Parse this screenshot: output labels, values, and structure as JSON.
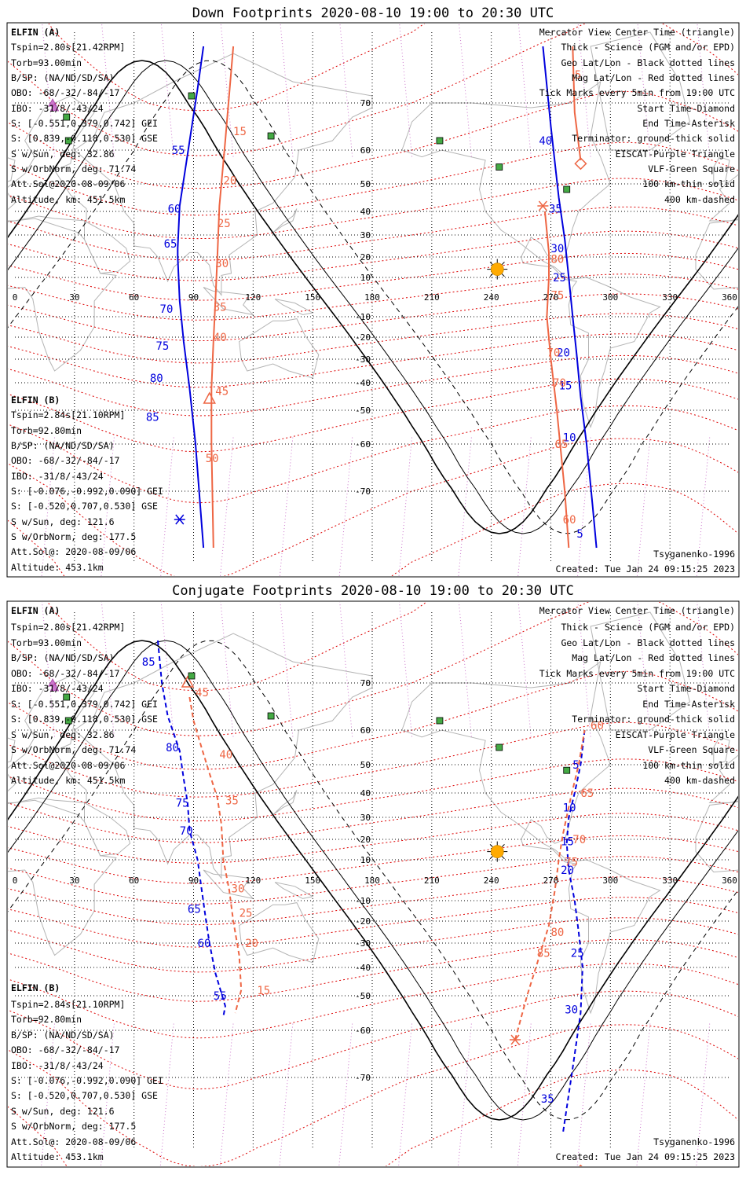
{
  "panels": [
    {
      "title": "Down Footprints 2020-08-10 19:00 to 20:30 UTC",
      "elfin_a": {
        "header": "ELFIN (A)",
        "lines": [
          "Tspin=2.80s[21.42RPM]",
          "Torb=93.00min",
          "B/SP: (NA/ND/SD/SA)",
          "OBO: -68/-32/-84/-17",
          "IBO: -31/8/-43/24",
          "S: [-0.551,0.379,0.742] GEI",
          "S: [0.839,-0.118,0.530] GSE",
          "S w/Sun, deg: 32.86",
          "S w/OrbNorm, deg: 71.74",
          "Att.Sol@2020-08-09/06",
          "Altitude, km: 451.5km"
        ]
      },
      "elfin_b": {
        "header": "ELFIN (B)",
        "lines": [
          "Tspin=2.84s[21.10RPM]",
          "Torb=92.80min",
          "B/SP: (NA/ND/SD/SA)",
          "OBO: -68/-32/-84/-17",
          "IBO: -31/8/-43/24",
          "S: [-0.076,-0.992,0.090] GEI",
          "S: [-0.520,0.707,0.530] GSE",
          "S w/Sun, deg: 121.6",
          "S w/OrbNorm, deg: 177.5",
          "Att.Sol@: 2020-08-09/06",
          "Altitude: 453.1km"
        ]
      },
      "model": "Tsyganenko-1996",
      "created": "Created: Tue Jan 24 09:15:25 2023",
      "tracks": {
        "a": {
          "color": "#0000dd",
          "style": "solid",
          "segments": [
            [
              [
                95,
                -78
              ],
              [
                91,
                -60
              ],
              [
                88,
                -42
              ],
              [
                85,
                -22
              ],
              [
                83,
                -2
              ],
              [
                82,
                20
              ],
              [
                82,
                24
              ],
              [
                83,
                42
              ],
              [
                86,
                55
              ],
              [
                92,
                72
              ],
              [
                95,
                78
              ]
            ],
            [
              [
                266,
                78
              ],
              [
                270,
                65
              ],
              [
                274,
                45
              ],
              [
                277,
                28
              ],
              [
                279,
                10
              ],
              [
                281,
                -10
              ],
              [
                283,
                -28
              ],
              [
                285,
                -45
              ],
              [
                288,
                -60
              ],
              [
                291,
                -72
              ],
              [
                293,
                -78
              ]
            ]
          ],
          "labels": [
            {
              "t": "55",
              "lon": 79,
              "lat": 60
            },
            {
              "t": "60",
              "lon": 77,
              "lat": 41
            },
            {
              "t": "65",
              "lon": 75,
              "lat": 26
            },
            {
              "t": "70",
              "lon": 73,
              "lat": -6
            },
            {
              "t": "75",
              "lon": 71,
              "lat": -24
            },
            {
              "t": "80",
              "lon": 68,
              "lat": -38
            },
            {
              "t": "85",
              "lon": 66,
              "lat": -52
            },
            {
              "t": "40",
              "lon": 264,
              "lat": 62
            },
            {
              "t": "35",
              "lon": 269,
              "lat": 41
            },
            {
              "t": "30",
              "lon": 270,
              "lat": 24
            },
            {
              "t": "25",
              "lon": 271,
              "lat": 10
            },
            {
              "t": "20",
              "lon": 273,
              "lat": -27
            },
            {
              "t": "15",
              "lon": 274,
              "lat": -41
            },
            {
              "t": "10",
              "lon": 276,
              "lat": -58
            },
            {
              "t": "5",
              "lon": 283,
              "lat": -76
            }
          ],
          "markers": [
            {
              "kind": "asterisk",
              "lon": 83,
              "lat": -74
            },
            {
              "kind": "triangle",
              "lon": 265,
              "lat": 82
            }
          ]
        },
        "b": {
          "color": "#ee6644",
          "style": "solid",
          "segments": [
            [
              [
                100,
                -78
              ],
              [
                99,
                -60
              ],
              [
                99,
                -42
              ],
              [
                100,
                -22
              ],
              [
                101,
                -2
              ],
              [
                102,
                20
              ],
              [
                103,
                42
              ],
              [
                106,
                62
              ],
              [
                110,
                78
              ]
            ],
            [
              [
                267,
                40
              ],
              [
                269,
                22
              ],
              [
                269,
                10
              ],
              [
                268,
                -10
              ],
              [
                270,
                -30
              ],
              [
                273,
                -50
              ],
              [
                277,
                -70
              ],
              [
                279,
                -78
              ]
            ],
            [
              [
                281,
                78
              ],
              [
                282,
                68
              ],
              [
                285,
                57
              ]
            ]
          ],
          "labels": [
            {
              "t": "15",
              "lon": 110,
              "lat": 64
            },
            {
              "t": "20",
              "lon": 105,
              "lat": 51
            },
            {
              "t": "25",
              "lon": 102,
              "lat": 35
            },
            {
              "t": "30",
              "lon": 101,
              "lat": 17
            },
            {
              "t": "35",
              "lon": 100,
              "lat": -5
            },
            {
              "t": "40",
              "lon": 100,
              "lat": -20
            },
            {
              "t": "45",
              "lon": 101,
              "lat": -43
            },
            {
              "t": "50",
              "lon": 96,
              "lat": -63
            },
            {
              "t": "5",
              "lon": 282,
              "lat": 74
            },
            {
              "t": "80",
              "lon": 270,
              "lat": 19
            },
            {
              "t": "75",
              "lon": 270,
              "lat": 1
            },
            {
              "t": "70",
              "lon": 268,
              "lat": -27
            },
            {
              "t": "70",
              "lon": 271,
              "lat": -40
            },
            {
              "t": "65",
              "lon": 272,
              "lat": -60
            },
            {
              "t": "60",
              "lon": 276,
              "lat": -74
            }
          ],
          "markers": [
            {
              "kind": "triangle",
              "lon": 98,
              "lat": -46
            },
            {
              "kind": "diamond",
              "lon": 285,
              "lat": 56
            },
            {
              "kind": "asterisk",
              "lon": 266,
              "lat": 42
            }
          ]
        }
      }
    },
    {
      "title": "Conjugate Footprints 2020-08-10 19:00 to 20:30 UTC",
      "elfin_a": {
        "header": "ELFIN (A)",
        "lines": [
          "Tspin=2.80s[21.42RPM]",
          "Torb=93.00min",
          "B/SP: (NA/ND/SD/SA)",
          "OBO: -68/-32/-84/-17",
          "IBO: -31/8/-43/24",
          "S: [-0.551,0.379,0.742] GEI",
          "S: [0.839,-0.118,0.530] GSE",
          "S w/Sun, deg: 32.86",
          "S w/OrbNorm, deg: 71.74",
          "Att.Sol@2020-08-09/06",
          "Altitude, km: 451.5km"
        ]
      },
      "elfin_b": {
        "header": "ELFIN (B)",
        "lines": [
          "Tspin=2.84s[21.10RPM]",
          "Torb=92.80min",
          "B/SP: (NA/ND/SD/SA)",
          "OBO: -68/-32/-84/-17",
          "IBO: -31/8/-43/24",
          "S: [-0.076,-0.992,0.090] GEI",
          "S: [-0.520,0.707,0.530] GSE",
          "S w/Sun, deg: 121.6",
          "S w/OrbNorm, deg: 177.5",
          "Att.Sol@: 2020-08-09/06",
          "Altitude: 453.1km"
        ]
      },
      "model": "Tsyganenko-1996",
      "created": "Created: Tue Jan 24 09:15:25 2023",
      "tracks": {
        "a": {
          "color": "#0000dd",
          "style": "dashed",
          "segments": [
            [
              [
                72,
                76
              ],
              [
                74,
                70
              ],
              [
                77,
                63
              ],
              [
                83,
                54
              ],
              [
                85,
                45
              ],
              [
                87,
                36
              ],
              [
                88,
                24
              ],
              [
                92,
                10
              ],
              [
                94,
                -4
              ],
              [
                96,
                -18
              ],
              [
                98,
                -30
              ],
              [
                101,
                -42
              ],
              [
                106,
                -53
              ],
              [
                105,
                -56
              ]
            ],
            [
              [
                287,
                60
              ],
              [
                285,
                50
              ],
              [
                282,
                40
              ],
              [
                279,
                30
              ],
              [
                278,
                18
              ],
              [
                279,
                5
              ],
              [
                282,
                -10
              ],
              [
                284,
                -25
              ],
              [
                286,
                -40
              ],
              [
                285,
                -55
              ],
              [
                281,
                -68
              ],
              [
                276,
                -78
              ]
            ]
          ],
          "labels": [
            {
              "t": "85",
              "lon": 64,
              "lat": 73
            },
            {
              "t": "80",
              "lon": 76,
              "lat": 55
            },
            {
              "t": "75",
              "lon": 81,
              "lat": 36
            },
            {
              "t": "70",
              "lon": 83,
              "lat": 24
            },
            {
              "t": "65",
              "lon": 87,
              "lat": -14
            },
            {
              "t": "60",
              "lon": 92,
              "lat": -30
            },
            {
              "t": "55",
              "lon": 100,
              "lat": -50
            },
            {
              "t": "5",
              "lon": 281,
              "lat": 50
            },
            {
              "t": "10",
              "lon": 276,
              "lat": 34
            },
            {
              "t": "15",
              "lon": 275,
              "lat": 19
            },
            {
              "t": "20",
              "lon": 275,
              "lat": 5
            },
            {
              "t": "25",
              "lon": 280,
              "lat": -34
            },
            {
              "t": "30",
              "lon": 277,
              "lat": -54
            },
            {
              "t": "35",
              "lon": 265,
              "lat": -73
            }
          ],
          "markers": []
        },
        "b": {
          "color": "#ee6644",
          "style": "dashed",
          "segments": [
            [
              [
                88,
                67
              ],
              [
                90,
                62
              ],
              [
                94,
                55
              ],
              [
                98,
                47
              ],
              [
                102,
                38
              ],
              [
                104,
                27
              ],
              [
                105,
                10
              ],
              [
                108,
                -5
              ],
              [
                110,
                -20
              ],
              [
                113,
                -35
              ],
              [
                114,
                -48
              ],
              [
                111,
                -55
              ]
            ],
            [
              [
                252,
                -62
              ],
              [
                258,
                -50
              ],
              [
                264,
                -36
              ],
              [
                269,
                -22
              ],
              [
                272,
                -5
              ],
              [
                274,
                10
              ],
              [
                276,
                22
              ],
              [
                280,
                38
              ],
              [
                284,
                50
              ],
              [
                287,
                60
              ]
            ]
          ],
          "labels": [
            {
              "t": "45",
              "lon": 91,
              "lat": 68
            },
            {
              "t": "40",
              "lon": 103,
              "lat": 53
            },
            {
              "t": "35",
              "lon": 106,
              "lat": 37
            },
            {
              "t": "30",
              "lon": 109,
              "lat": -4
            },
            {
              "t": "25",
              "lon": 113,
              "lat": -16
            },
            {
              "t": "20",
              "lon": 116,
              "lat": -30
            },
            {
              "t": "15",
              "lon": 122,
              "lat": -48
            },
            {
              "t": "60",
              "lon": 290,
              "lat": 61
            },
            {
              "t": "65",
              "lon": 285,
              "lat": 40
            },
            {
              "t": "70",
              "lon": 281,
              "lat": 20
            },
            {
              "t": "75",
              "lon": 277,
              "lat": 9
            },
            {
              "t": "80",
              "lon": 270,
              "lat": -25
            },
            {
              "t": "85",
              "lon": 263,
              "lat": -34
            }
          ],
          "markers": [
            {
              "kind": "triangle",
              "lon": 87,
              "lat": 70
            },
            {
              "kind": "asterisk",
              "lon": 252,
              "lat": -62
            },
            {
              "kind": "diamond",
              "lon": 285,
              "lat": -82
            }
          ]
        }
      }
    }
  ],
  "legend": [
    {
      "text": "Mercator View Center Time (triangle)",
      "color": "#000000"
    },
    {
      "text": "Thick - Science (FGM and/or EPD)",
      "color": "#000000"
    },
    {
      "text": "Geo Lat/Lon - Black dotted lines",
      "color": "#000000"
    },
    {
      "text": "Mag Lat/Lon - Red dotted lines",
      "color": "#dd0000"
    },
    {
      "text": "Tick Marks every 5min from 19:00 UTC",
      "color": "#000000"
    },
    {
      "text": "Start Time-Diamond",
      "color": "#000000"
    },
    {
      "text": "End Time-Asterisk",
      "color": "#000000"
    },
    {
      "text": "Terminator: ground-thick solid",
      "color": "#000000"
    },
    {
      "text": "EISCAT-Purple Triangle",
      "color": "#cc77cc"
    },
    {
      "text": "VLF-Green Square",
      "color": "#44aa44"
    },
    {
      "text": "100 km-thin solid",
      "color": "#000000"
    },
    {
      "text": "400 km-dashed",
      "color": "#000000"
    }
  ],
  "x_ticks": [
    "0",
    "30",
    "60",
    "90",
    "120",
    "150",
    "180",
    "210",
    "240",
    "270",
    "300",
    "330",
    "360"
  ],
  "lat_ticks": [
    {
      "t": "70",
      "lat": 70
    },
    {
      "t": "60",
      "lat": 60
    },
    {
      "t": "50",
      "lat": 50
    },
    {
      "t": "40",
      "lat": 40
    },
    {
      "t": "30",
      "lat": 30
    },
    {
      "t": "20",
      "lat": 20
    },
    {
      "t": "10",
      "lat": 10
    },
    {
      "t": "-10",
      "lat": -10
    },
    {
      "t": "-20",
      "lat": -20
    },
    {
      "t": "-30",
      "lat": -30
    },
    {
      "t": "-40",
      "lat": -40
    },
    {
      "t": "-50",
      "lat": -50
    },
    {
      "t": "-60",
      "lat": -60
    },
    {
      "t": "-70",
      "lat": -70
    }
  ],
  "sun": {
    "lon": 243,
    "lat": 14
  },
  "vlf_sites": [
    {
      "lon": 26,
      "lat": 67
    },
    {
      "lon": 27,
      "lat": 62
    },
    {
      "lon": 89,
      "lat": 71
    },
    {
      "lon": 129,
      "lat": 63
    },
    {
      "lon": 214,
      "lat": 62
    },
    {
      "lon": 244,
      "lat": 55
    },
    {
      "lon": 278,
      "lat": 48
    }
  ],
  "eiscat_sites": [
    {
      "lon": 19,
      "lat": 70
    },
    {
      "lon": 20,
      "lat": 69
    }
  ],
  "colors": {
    "elfin_a": "#0000dd",
    "elfin_b": "#ee6644",
    "geo_grid": "#000000",
    "mag_grid": "#dd0000",
    "coast": "#b4b4b4",
    "sun": "#ffaa00",
    "vlf": "#44aa44",
    "eiscat": "#cc77cc"
  }
}
